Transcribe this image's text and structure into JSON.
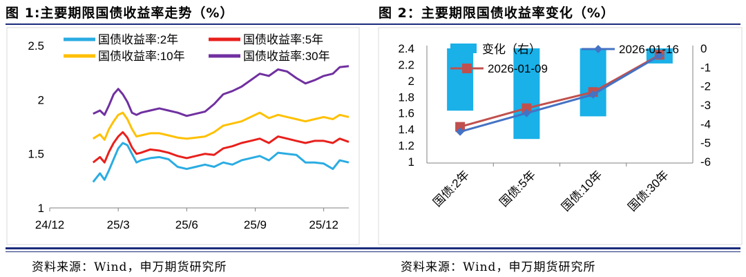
{
  "figure1": {
    "title": "图 1:主要期限国债收益率走势（%）",
    "source": "资料来源：Wind，申万期货研究所",
    "colors": {
      "y2": "#2aace2",
      "y5": "#e8201c",
      "y10": "#ffc000",
      "y30": "#7030a0"
    },
    "chart_data": {
      "type": "line",
      "title": "主要期限国债收益率走势（%）",
      "xlabel": "",
      "ylabel": "",
      "xlim": [
        0,
        13.1
      ],
      "ylim": [
        1,
        2.5
      ],
      "yticks": [
        "2.5",
        "2",
        "1.5",
        "1"
      ],
      "ytick_values": [
        2.5,
        2,
        1.5,
        1
      ],
      "xticks": [
        "24/12",
        "25/3",
        "25/6",
        "25/9",
        "25/12"
      ],
      "xtick_values": [
        0,
        3,
        6,
        9,
        12
      ],
      "legend": "top",
      "series": [
        {
          "name": "国债收益率:2年",
          "key": "y2",
          "x": [
            1.9,
            2.2,
            2.4,
            2.6,
            2.8,
            3.0,
            3.2,
            3.4,
            3.6,
            3.8,
            4.0,
            4.4,
            4.8,
            5.2,
            5.6,
            6.0,
            6.4,
            6.8,
            7.2,
            7.6,
            8.0,
            8.4,
            8.8,
            9.2,
            9.6,
            10.0,
            10.4,
            10.8,
            11.2,
            11.6,
            12.0,
            12.4,
            12.7,
            13.1
          ],
          "values": [
            1.24,
            1.32,
            1.26,
            1.35,
            1.45,
            1.55,
            1.6,
            1.58,
            1.5,
            1.42,
            1.44,
            1.46,
            1.47,
            1.45,
            1.38,
            1.36,
            1.38,
            1.4,
            1.38,
            1.42,
            1.4,
            1.44,
            1.46,
            1.48,
            1.44,
            1.51,
            1.5,
            1.49,
            1.42,
            1.42,
            1.41,
            1.36,
            1.44,
            1.42
          ]
        },
        {
          "name": "国债收益率:5年",
          "key": "y5",
          "x": [
            1.9,
            2.2,
            2.4,
            2.6,
            2.8,
            3.0,
            3.2,
            3.4,
            3.6,
            3.8,
            4.0,
            4.4,
            4.8,
            5.2,
            5.6,
            6.0,
            6.4,
            6.8,
            7.2,
            7.6,
            8.0,
            8.4,
            8.8,
            9.2,
            9.6,
            10.0,
            10.4,
            10.8,
            11.2,
            11.6,
            12.0,
            12.4,
            12.7,
            13.1
          ],
          "values": [
            1.42,
            1.47,
            1.42,
            1.52,
            1.6,
            1.66,
            1.7,
            1.65,
            1.56,
            1.5,
            1.51,
            1.54,
            1.53,
            1.51,
            1.48,
            1.46,
            1.48,
            1.5,
            1.49,
            1.55,
            1.57,
            1.6,
            1.62,
            1.64,
            1.6,
            1.66,
            1.64,
            1.62,
            1.6,
            1.62,
            1.62,
            1.6,
            1.64,
            1.61
          ]
        },
        {
          "name": "国债收益率:10年",
          "key": "y10",
          "x": [
            1.9,
            2.2,
            2.4,
            2.6,
            2.8,
            3.0,
            3.2,
            3.4,
            3.6,
            3.8,
            4.0,
            4.4,
            4.8,
            5.2,
            5.6,
            6.0,
            6.4,
            6.8,
            7.2,
            7.6,
            8.0,
            8.4,
            8.8,
            9.2,
            9.6,
            10.0,
            10.4,
            10.8,
            11.2,
            11.6,
            12.0,
            12.4,
            12.7,
            13.1
          ],
          "values": [
            1.64,
            1.68,
            1.63,
            1.73,
            1.8,
            1.86,
            1.88,
            1.82,
            1.73,
            1.66,
            1.67,
            1.69,
            1.69,
            1.67,
            1.65,
            1.64,
            1.65,
            1.66,
            1.7,
            1.76,
            1.78,
            1.8,
            1.84,
            1.88,
            1.83,
            1.86,
            1.84,
            1.82,
            1.8,
            1.82,
            1.84,
            1.82,
            1.86,
            1.84
          ]
        },
        {
          "name": "国债收益率:30年",
          "key": "y30",
          "x": [
            1.9,
            2.2,
            2.4,
            2.6,
            2.8,
            3.0,
            3.2,
            3.4,
            3.6,
            3.8,
            4.0,
            4.4,
            4.8,
            5.2,
            5.6,
            6.0,
            6.4,
            6.8,
            7.2,
            7.6,
            8.0,
            8.4,
            8.8,
            9.2,
            9.6,
            10.0,
            10.4,
            10.8,
            11.2,
            11.6,
            12.0,
            12.4,
            12.7,
            13.1
          ],
          "values": [
            1.87,
            1.9,
            1.86,
            1.95,
            2.05,
            2.1,
            2.05,
            1.98,
            1.88,
            1.86,
            1.88,
            1.9,
            1.92,
            1.9,
            1.88,
            1.85,
            1.87,
            1.89,
            1.96,
            2.05,
            2.08,
            2.12,
            2.18,
            2.24,
            2.22,
            2.28,
            2.26,
            2.2,
            2.15,
            2.18,
            2.22,
            2.24,
            2.3,
            2.31
          ]
        }
      ]
    }
  },
  "figure2": {
    "title": "图 2：主要期限国债收益率变化（%）",
    "source": "资料来源：Wind，申万期货研究所",
    "colors": {
      "bar": "#1ab0e8",
      "d1": "#4472c4",
      "d2": "#c0504d"
    },
    "chart_data": {
      "type": "bar+line",
      "title": "主要期限国债收益率变化（%）",
      "xlabel": "",
      "ylabel": "",
      "categories": [
        "国债:2年",
        "国债:5年",
        "国债:10年",
        "国债:30年"
      ],
      "ylim": [
        1,
        2.4
      ],
      "yticks": [
        "2.4",
        "2.2",
        "2",
        "1.8",
        "1.6",
        "1.4",
        "1.2",
        "1"
      ],
      "ytick_values": [
        2.4,
        2.2,
        2.0,
        1.8,
        1.6,
        1.4,
        1.2,
        1.0
      ],
      "y2lim": [
        -6,
        0
      ],
      "y2ticks": [
        "0",
        "-1",
        "-2",
        "-3",
        "-4",
        "-5",
        "-6"
      ],
      "y2tick_values": [
        0,
        -1,
        -2,
        -3,
        -4,
        -5,
        -6
      ],
      "legend": "top",
      "series": [
        {
          "name": "变化（右）",
          "key": "bar",
          "kind": "bar",
          "axis": "right",
          "values": [
            -3.3,
            -4.8,
            -3.6,
            -0.8
          ]
        },
        {
          "name": "2026-01-16",
          "key": "d1",
          "kind": "line",
          "axis": "left",
          "values": [
            1.37,
            1.6,
            1.83,
            2.31
          ]
        },
        {
          "name": "2026-01-09",
          "key": "d2",
          "kind": "line",
          "axis": "left",
          "values": [
            1.43,
            1.66,
            1.86,
            2.32
          ]
        }
      ]
    }
  }
}
